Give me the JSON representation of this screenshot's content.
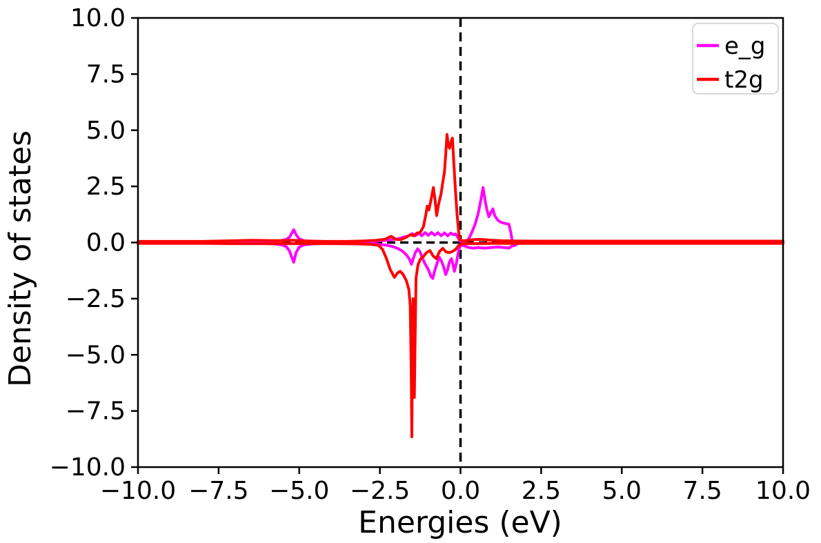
{
  "chart_data": {
    "type": "line",
    "title": "",
    "xlabel": "Energies (eV)",
    "ylabel": "Density of states",
    "xlim": [
      -10,
      10
    ],
    "ylim": [
      -10,
      10
    ],
    "grid": false,
    "legend_position": "upper right",
    "background_color": "#ffffff",
    "axis_color": "#000000",
    "xticks": [
      -10.0,
      -7.5,
      -5.0,
      -2.5,
      0.0,
      2.5,
      5.0,
      7.5,
      10.0
    ],
    "yticks": [
      -10.0,
      -7.5,
      -5.0,
      -2.5,
      0.0,
      2.5,
      5.0,
      7.5,
      10.0
    ],
    "xtick_labels": [
      "−10.0",
      "−7.5",
      "−5.0",
      "−2.5",
      "0.0",
      "2.5",
      "5.0",
      "7.5",
      "10.0"
    ],
    "ytick_labels": [
      "−10.0",
      "−7.5",
      "−5.0",
      "−2.5",
      "0.0",
      "2.5",
      "5.0",
      "7.5",
      "10.0"
    ],
    "reference_lines": {
      "vertical_x": 0.0,
      "horizontal_y": 0.0,
      "style": "dashed",
      "color": "#000000",
      "meaning": "Fermi level at 0 eV and zero-DOS baseline"
    },
    "series": [
      {
        "name": "e_g",
        "color": "#ff00ff",
        "spin_up": [
          [
            -10,
            0.03
          ],
          [
            -8,
            0.03
          ],
          [
            -7,
            0.04
          ],
          [
            -6.2,
            0.04
          ],
          [
            -5.8,
            0.06
          ],
          [
            -5.55,
            0.09
          ],
          [
            -5.4,
            0.14
          ],
          [
            -5.3,
            0.24
          ],
          [
            -5.22,
            0.45
          ],
          [
            -5.17,
            0.57
          ],
          [
            -5.1,
            0.35
          ],
          [
            -5.0,
            0.16
          ],
          [
            -4.85,
            0.08
          ],
          [
            -4.6,
            0.05
          ],
          [
            -4.2,
            0.04
          ],
          [
            -3.6,
            0.04
          ],
          [
            -3.0,
            0.05
          ],
          [
            -2.6,
            0.07
          ],
          [
            -2.3,
            0.1
          ],
          [
            -2.1,
            0.13
          ],
          [
            -1.9,
            0.18
          ],
          [
            -1.75,
            0.25
          ],
          [
            -1.6,
            0.3
          ],
          [
            -1.5,
            0.4
          ],
          [
            -1.4,
            0.3
          ],
          [
            -1.3,
            0.42
          ],
          [
            -1.2,
            0.3
          ],
          [
            -1.1,
            0.44
          ],
          [
            -1.0,
            0.32
          ],
          [
            -0.9,
            0.45
          ],
          [
            -0.8,
            0.33
          ],
          [
            -0.7,
            0.44
          ],
          [
            -0.6,
            0.3
          ],
          [
            -0.5,
            0.43
          ],
          [
            -0.4,
            0.3
          ],
          [
            -0.3,
            0.42
          ],
          [
            -0.22,
            0.34
          ],
          [
            -0.15,
            0.38
          ],
          [
            -0.08,
            0.22
          ],
          [
            -0.02,
            0.06
          ],
          [
            0.05,
            0.03
          ],
          [
            0.15,
            0.06
          ],
          [
            0.25,
            0.15
          ],
          [
            0.35,
            0.45
          ],
          [
            0.45,
            0.8
          ],
          [
            0.55,
            1.3
          ],
          [
            0.63,
            1.9
          ],
          [
            0.7,
            2.45
          ],
          [
            0.76,
            1.9
          ],
          [
            0.82,
            1.45
          ],
          [
            0.88,
            1.15
          ],
          [
            0.95,
            1.35
          ],
          [
            1.0,
            1.5
          ],
          [
            1.06,
            1.2
          ],
          [
            1.15,
            1.0
          ],
          [
            1.25,
            0.9
          ],
          [
            1.38,
            0.85
          ],
          [
            1.5,
            0.82
          ],
          [
            1.56,
            0.45
          ],
          [
            1.6,
            0.1
          ],
          [
            1.64,
            -0.15
          ],
          [
            1.7,
            -0.12
          ],
          [
            1.78,
            -0.03
          ],
          [
            1.9,
            0.02
          ],
          [
            2.5,
            0.02
          ],
          [
            4,
            0.02
          ],
          [
            7,
            0.02
          ],
          [
            10,
            0.02
          ]
        ],
        "spin_down": [
          [
            -10,
            -0.02
          ],
          [
            -8,
            -0.02
          ],
          [
            -7,
            -0.03
          ],
          [
            -6.2,
            -0.04
          ],
          [
            -5.8,
            -0.06
          ],
          [
            -5.55,
            -0.1
          ],
          [
            -5.4,
            -0.18
          ],
          [
            -5.3,
            -0.38
          ],
          [
            -5.22,
            -0.7
          ],
          [
            -5.17,
            -0.88
          ],
          [
            -5.1,
            -0.45
          ],
          [
            -5.0,
            -0.2
          ],
          [
            -4.85,
            -0.1
          ],
          [
            -4.6,
            -0.06
          ],
          [
            -4.2,
            -0.04
          ],
          [
            -3.6,
            -0.04
          ],
          [
            -3.0,
            -0.05
          ],
          [
            -2.6,
            -0.07
          ],
          [
            -2.3,
            -0.12
          ],
          [
            -2.1,
            -0.18
          ],
          [
            -1.95,
            -0.26
          ],
          [
            -1.8,
            -0.38
          ],
          [
            -1.68,
            -0.55
          ],
          [
            -1.58,
            -0.75
          ],
          [
            -1.52,
            -0.97
          ],
          [
            -1.46,
            -0.7
          ],
          [
            -1.4,
            -0.45
          ],
          [
            -1.33,
            -0.28
          ],
          [
            -1.26,
            -0.4
          ],
          [
            -1.18,
            -0.7
          ],
          [
            -1.1,
            -0.95
          ],
          [
            -1.0,
            -1.2
          ],
          [
            -0.92,
            -1.5
          ],
          [
            -0.86,
            -1.6
          ],
          [
            -0.8,
            -1.25
          ],
          [
            -0.72,
            -0.9
          ],
          [
            -0.66,
            -0.65
          ],
          [
            -0.6,
            -0.8
          ],
          [
            -0.52,
            -1.1
          ],
          [
            -0.46,
            -1.43
          ],
          [
            -0.4,
            -1.2
          ],
          [
            -0.34,
            -0.85
          ],
          [
            -0.28,
            -0.72
          ],
          [
            -0.23,
            -1.0
          ],
          [
            -0.19,
            -1.28
          ],
          [
            -0.14,
            -1.0
          ],
          [
            -0.09,
            -0.6
          ],
          [
            -0.04,
            -0.25
          ],
          [
            0.02,
            -0.1
          ],
          [
            0.12,
            -0.15
          ],
          [
            0.25,
            -0.22
          ],
          [
            0.4,
            -0.25
          ],
          [
            0.55,
            -0.22
          ],
          [
            0.75,
            -0.25
          ],
          [
            0.95,
            -0.22
          ],
          [
            1.15,
            -0.2
          ],
          [
            1.35,
            -0.22
          ],
          [
            1.5,
            -0.25
          ],
          [
            1.6,
            -0.15
          ],
          [
            1.7,
            -0.06
          ],
          [
            1.85,
            -0.03
          ],
          [
            2.5,
            -0.02
          ],
          [
            4,
            -0.02
          ],
          [
            7,
            -0.02
          ],
          [
            10,
            -0.02
          ]
        ]
      },
      {
        "name": "t2g",
        "color": "#ff0000",
        "spin_up": [
          [
            -10,
            0.05
          ],
          [
            -8,
            0.05
          ],
          [
            -7,
            0.08
          ],
          [
            -6.5,
            0.1
          ],
          [
            -6,
            0.09
          ],
          [
            -5.5,
            0.08
          ],
          [
            -5.2,
            0.1
          ],
          [
            -4.8,
            0.07
          ],
          [
            -4.2,
            0.05
          ],
          [
            -3.5,
            0.05
          ],
          [
            -3,
            0.07
          ],
          [
            -2.6,
            0.1
          ],
          [
            -2.35,
            0.14
          ],
          [
            -2.15,
            0.28
          ],
          [
            -2.0,
            0.14
          ],
          [
            -1.85,
            0.13
          ],
          [
            -1.7,
            0.22
          ],
          [
            -1.55,
            0.35
          ],
          [
            -1.45,
            0.3
          ],
          [
            -1.35,
            0.42
          ],
          [
            -1.25,
            0.45
          ],
          [
            -1.15,
            0.7
          ],
          [
            -1.08,
            1.2
          ],
          [
            -1.03,
            1.62
          ],
          [
            -0.98,
            1.45
          ],
          [
            -0.9,
            2.0
          ],
          [
            -0.84,
            2.45
          ],
          [
            -0.79,
            1.9
          ],
          [
            -0.74,
            1.2
          ],
          [
            -0.68,
            1.7
          ],
          [
            -0.6,
            2.2
          ],
          [
            -0.55,
            2.7
          ],
          [
            -0.5,
            3.1
          ],
          [
            -0.46,
            3.9
          ],
          [
            -0.42,
            4.81
          ],
          [
            -0.38,
            4.35
          ],
          [
            -0.34,
            4.2
          ],
          [
            -0.29,
            4.5
          ],
          [
            -0.25,
            4.65
          ],
          [
            -0.21,
            3.6
          ],
          [
            -0.16,
            2.4
          ],
          [
            -0.11,
            1.3
          ],
          [
            -0.06,
            0.5
          ],
          [
            -0.02,
            0.12
          ],
          [
            0.05,
            0.08
          ],
          [
            0.2,
            0.09
          ],
          [
            0.4,
            0.13
          ],
          [
            0.6,
            0.14
          ],
          [
            0.8,
            0.12
          ],
          [
            1.0,
            0.1
          ],
          [
            1.3,
            0.08
          ],
          [
            1.7,
            0.07
          ],
          [
            2.5,
            0.06
          ],
          [
            4,
            0.06
          ],
          [
            6,
            0.06
          ],
          [
            8,
            0.06
          ],
          [
            10,
            0.06
          ]
        ],
        "spin_down": [
          [
            -10,
            -0.04
          ],
          [
            -8,
            -0.04
          ],
          [
            -7,
            -0.05
          ],
          [
            -6,
            -0.05
          ],
          [
            -5,
            -0.05
          ],
          [
            -4,
            -0.05
          ],
          [
            -3.2,
            -0.06
          ],
          [
            -2.8,
            -0.08
          ],
          [
            -2.55,
            -0.12
          ],
          [
            -2.42,
            -0.3
          ],
          [
            -2.3,
            -0.7
          ],
          [
            -2.18,
            -1.2
          ],
          [
            -2.05,
            -1.55
          ],
          [
            -1.95,
            -1.35
          ],
          [
            -1.87,
            -1.28
          ],
          [
            -1.78,
            -1.42
          ],
          [
            -1.68,
            -1.7
          ],
          [
            -1.6,
            -2.1
          ],
          [
            -1.56,
            -2.8
          ],
          [
            -1.53,
            -5.5
          ],
          [
            -1.51,
            -8.65
          ],
          [
            -1.49,
            -5.0
          ],
          [
            -1.47,
            -2.5
          ],
          [
            -1.45,
            -4.0
          ],
          [
            -1.43,
            -6.9
          ],
          [
            -1.41,
            -4.5
          ],
          [
            -1.38,
            -1.6
          ],
          [
            -1.32,
            -1.0
          ],
          [
            -1.25,
            -0.75
          ],
          [
            -1.15,
            -0.62
          ],
          [
            -1.05,
            -0.45
          ],
          [
            -0.95,
            -0.36
          ],
          [
            -0.85,
            -0.6
          ],
          [
            -0.75,
            -0.72
          ],
          [
            -0.65,
            -0.4
          ],
          [
            -0.55,
            -0.26
          ],
          [
            -0.45,
            -0.42
          ],
          [
            -0.35,
            -0.45
          ],
          [
            -0.25,
            -0.4
          ],
          [
            -0.15,
            -0.3
          ],
          [
            -0.05,
            -0.12
          ],
          [
            0.1,
            -0.05
          ],
          [
            0.5,
            -0.05
          ],
          [
            1,
            -0.04
          ],
          [
            2,
            -0.04
          ],
          [
            4,
            -0.04
          ],
          [
            7,
            -0.04
          ],
          [
            10,
            -0.04
          ]
        ]
      }
    ]
  },
  "legend": {
    "entries": [
      {
        "label": "e_g",
        "color": "#ff00ff"
      },
      {
        "label": "t2g",
        "color": "#ff0000"
      }
    ]
  }
}
